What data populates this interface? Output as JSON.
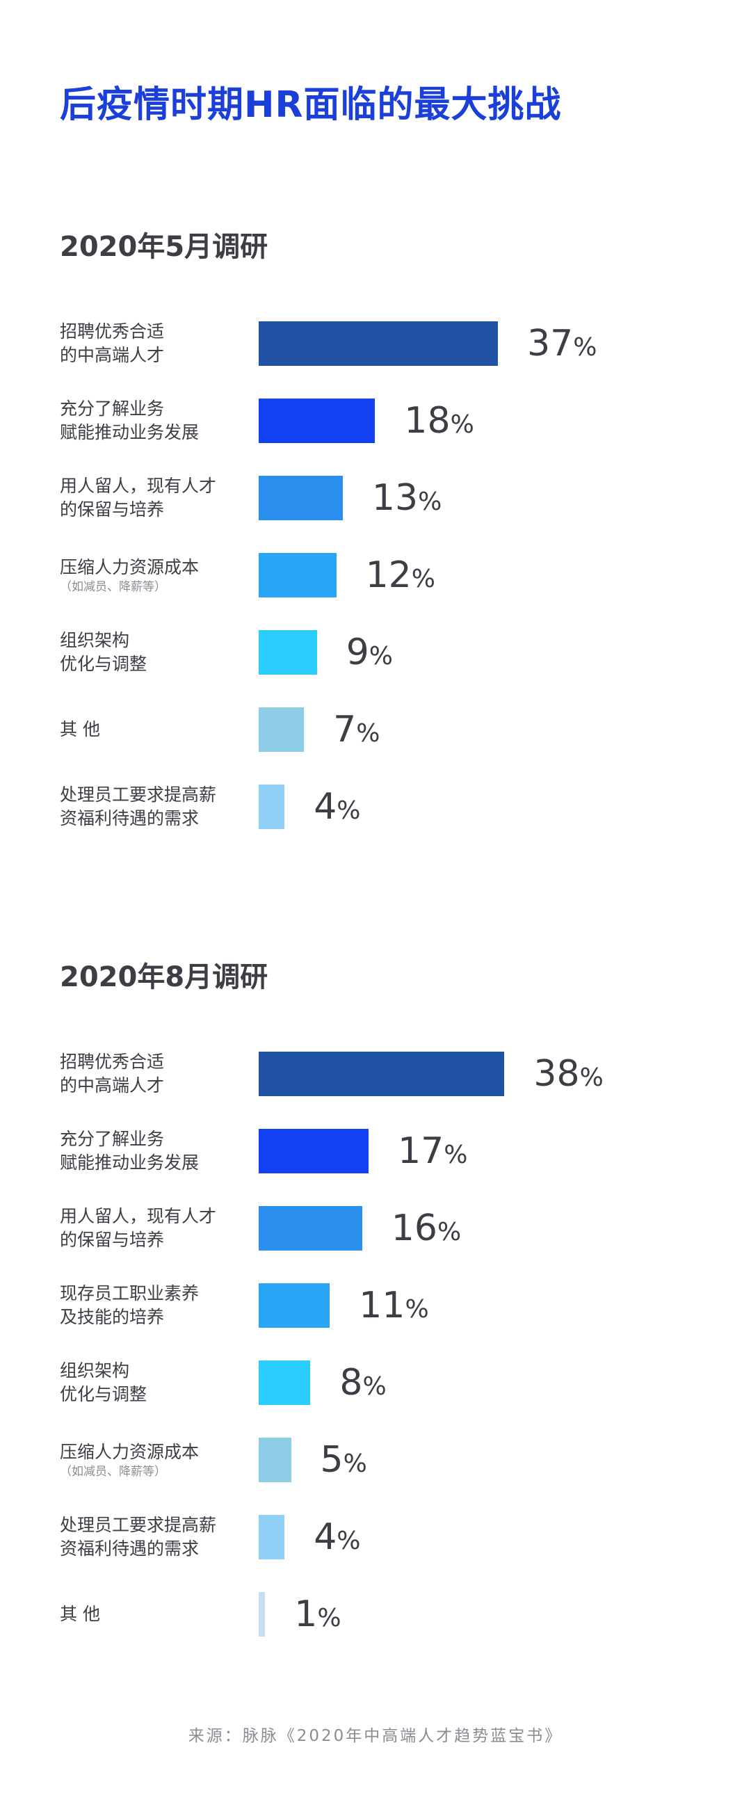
{
  "title": "后疫情时期HR面临的最大挑战",
  "source": "来源：脉脉《2020年中高端人才趋势蓝宝书》",
  "chart_data": [
    {
      "type": "bar",
      "orientation": "horizontal",
      "title": "2020年5月调研",
      "unit": "%",
      "categories": [
        {
          "lines": [
            "招聘优秀合适",
            "的中高端人才"
          ],
          "note": ""
        },
        {
          "lines": [
            "充分了解业务",
            "赋能推动业务发展"
          ],
          "note": ""
        },
        {
          "lines": [
            "用人留人，现有人才",
            "的保留与培养"
          ],
          "note": ""
        },
        {
          "lines": [
            "压缩人力资源成本"
          ],
          "note": "（如减员、降薪等）"
        },
        {
          "lines": [
            "组织架构",
            "优化与调整"
          ],
          "note": ""
        },
        {
          "lines": [
            "其 他"
          ],
          "note": ""
        },
        {
          "lines": [
            "处理员工要求提高薪",
            "资福利待遇的需求"
          ],
          "note": ""
        }
      ],
      "values": [
        37,
        18,
        13,
        12,
        9,
        7,
        4
      ],
      "colors": [
        "#2151a2",
        "#1240f2",
        "#2b8ff0",
        "#2aa4f4",
        "#2bcdfc",
        "#8ecde8",
        "#90cff6"
      ]
    },
    {
      "type": "bar",
      "orientation": "horizontal",
      "title": "2020年8月调研",
      "unit": "%",
      "categories": [
        {
          "lines": [
            "招聘优秀合适",
            "的中高端人才"
          ],
          "note": ""
        },
        {
          "lines": [
            "充分了解业务",
            "赋能推动业务发展"
          ],
          "note": ""
        },
        {
          "lines": [
            "用人留人，现有人才",
            "的保留与培养"
          ],
          "note": ""
        },
        {
          "lines": [
            "现存员工职业素养",
            "及技能的培养"
          ],
          "note": ""
        },
        {
          "lines": [
            "组织架构",
            "优化与调整"
          ],
          "note": ""
        },
        {
          "lines": [
            "压缩人力资源成本"
          ],
          "note": "（如减员、降薪等）"
        },
        {
          "lines": [
            "处理员工要求提高薪",
            "资福利待遇的需求"
          ],
          "note": ""
        },
        {
          "lines": [
            "其 他"
          ],
          "note": ""
        }
      ],
      "values": [
        38,
        17,
        16,
        11,
        8,
        5,
        4,
        1
      ],
      "colors": [
        "#2151a2",
        "#1240f2",
        "#2b8ff0",
        "#2aa4f4",
        "#2bcdfc",
        "#8ecde8",
        "#90cff6",
        "#c6dff0"
      ]
    }
  ]
}
